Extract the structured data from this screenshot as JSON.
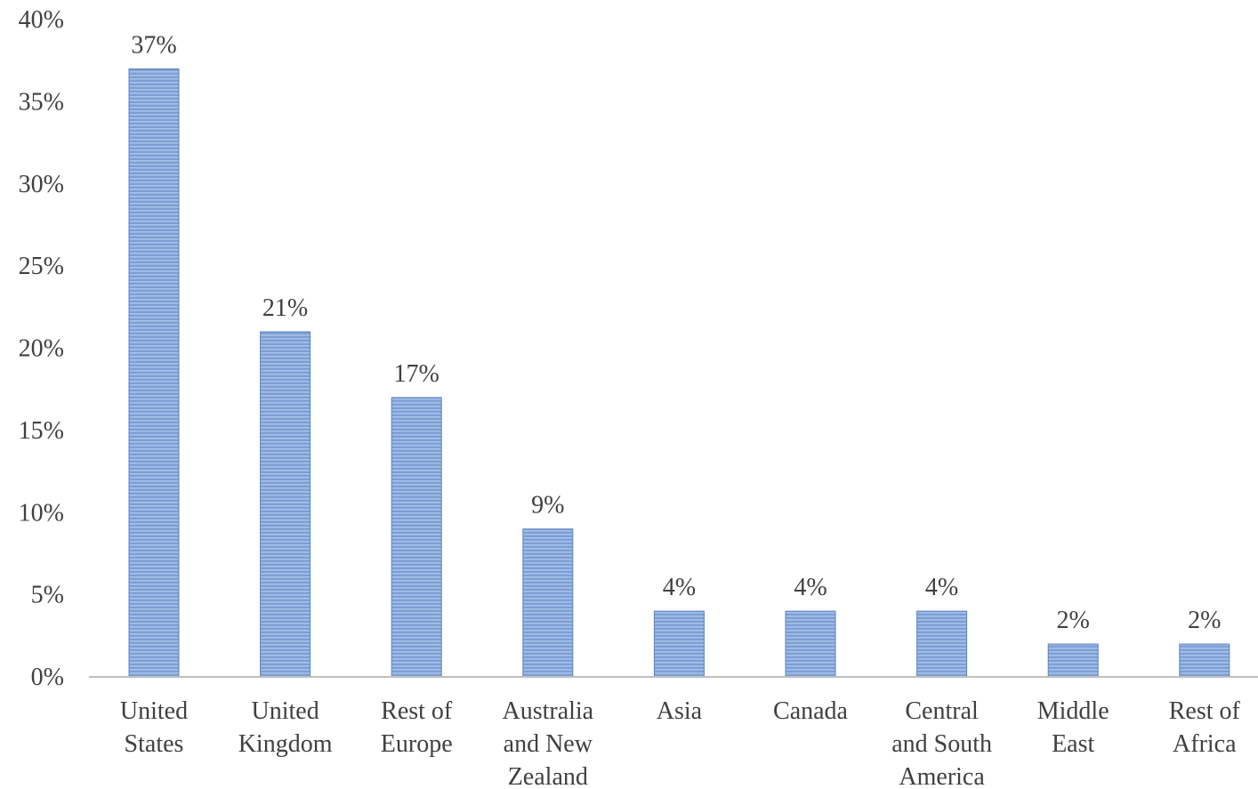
{
  "chart_data": {
    "type": "bar",
    "title": "",
    "xlabel": "",
    "ylabel": "",
    "categories": [
      [
        "United",
        "States"
      ],
      [
        "United",
        "Kingdom"
      ],
      [
        "Rest of",
        "Europe"
      ],
      [
        "Australia",
        "and New",
        "Zealand"
      ],
      [
        "Asia"
      ],
      [
        "Canada"
      ],
      [
        "Central",
        "and South",
        "America"
      ],
      [
        "Middle",
        "East"
      ],
      [
        "Rest of",
        "Africa"
      ]
    ],
    "values": [
      37,
      21,
      17,
      9,
      4,
      4,
      4,
      2,
      2
    ],
    "value_labels": [
      "37%",
      "21%",
      "17%",
      "9%",
      "4%",
      "4%",
      "4%",
      "2%",
      "2%"
    ],
    "ylim": [
      0,
      40
    ],
    "yticks": [
      0,
      5,
      10,
      15,
      20,
      25,
      30,
      35,
      40
    ],
    "ytick_labels": [
      "0%",
      "5%",
      "10%",
      "15%",
      "20%",
      "25%",
      "30%",
      "35%",
      "40%"
    ],
    "grid": false,
    "legend": "none",
    "colors": {
      "bar": "#7b9fd6",
      "bar_stripe": "#a9c1e6",
      "bar_edge": "#5b82c2",
      "axis": "#bfbfbf",
      "text": "#404040"
    }
  }
}
